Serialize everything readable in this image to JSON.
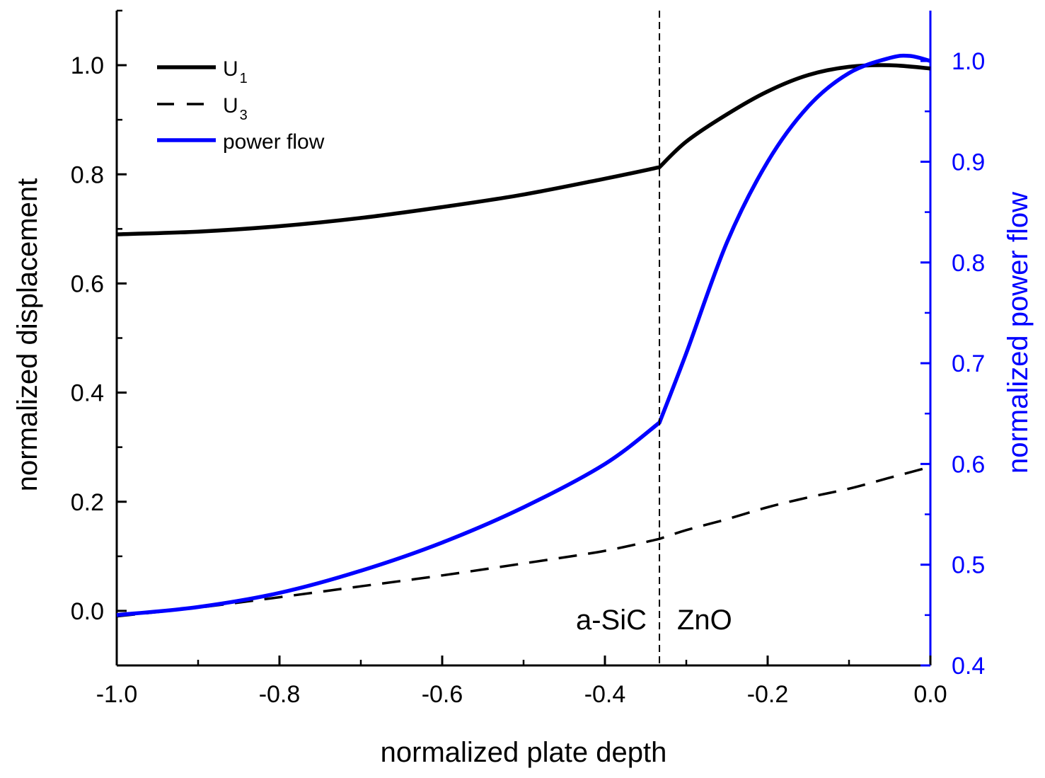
{
  "chart_data": {
    "type": "line",
    "xlabel": "normalized plate depth",
    "ylabel": "normalized displacement",
    "y2label": "normalized power flow",
    "xlim": [
      -1.0,
      0.0
    ],
    "ylim": [
      -0.1,
      1.1
    ],
    "y2lim": [
      0.4,
      1.05
    ],
    "xticks": [
      "-1.0",
      "-0.8",
      "-0.6",
      "-0.4",
      "-0.2",
      "0.0"
    ],
    "yticks": [
      "0.0",
      "0.2",
      "0.4",
      "0.6",
      "0.8",
      "1.0"
    ],
    "y2ticks": [
      "0.4",
      "0.5",
      "0.6",
      "0.7",
      "0.8",
      "0.9",
      "1.0"
    ],
    "grid": false,
    "legend_position": "top-left",
    "colors": {
      "axis_left": "#000000",
      "axis_right": "#0000ff",
      "u1": "#000000",
      "u3": "#000000",
      "power": "#0000ff"
    },
    "interface_x": -0.333,
    "region_labels": {
      "left": "a-SiC",
      "right": "ZnO"
    },
    "series": [
      {
        "name": "U1",
        "legend_main": "U",
        "legend_sub": "1",
        "axis": "left",
        "style": "solid",
        "x": [
          -1.0,
          -0.9,
          -0.8,
          -0.7,
          -0.6,
          -0.5,
          -0.4,
          -0.333,
          -0.3,
          -0.25,
          -0.2,
          -0.15,
          -0.1,
          -0.05,
          0.0
        ],
        "y": [
          0.69,
          0.695,
          0.705,
          0.72,
          0.74,
          0.763,
          0.792,
          0.813,
          0.86,
          0.91,
          0.952,
          0.982,
          0.997,
          1.0,
          0.994
        ]
      },
      {
        "name": "U3",
        "legend_main": "U",
        "legend_sub": "3",
        "axis": "left",
        "style": "dashed",
        "x": [
          -1.0,
          -0.9,
          -0.8,
          -0.7,
          -0.6,
          -0.5,
          -0.4,
          -0.333,
          -0.3,
          -0.25,
          -0.2,
          -0.15,
          -0.1,
          -0.05,
          0.0
        ],
        "y": [
          -0.01,
          0.006,
          0.025,
          0.045,
          0.065,
          0.087,
          0.11,
          0.132,
          0.148,
          0.168,
          0.19,
          0.208,
          0.224,
          0.244,
          0.264
        ]
      },
      {
        "name": "power flow",
        "legend_main": "power flow",
        "legend_sub": "",
        "axis": "right",
        "style": "solid",
        "x": [
          -1.0,
          -0.9,
          -0.8,
          -0.7,
          -0.6,
          -0.5,
          -0.4,
          -0.333,
          -0.3,
          -0.25,
          -0.2,
          -0.15,
          -0.1,
          -0.05,
          -0.025,
          0.0
        ],
        "y": [
          0.45,
          0.458,
          0.472,
          0.494,
          0.522,
          0.557,
          0.6,
          0.641,
          0.71,
          0.82,
          0.9,
          0.955,
          0.988,
          1.003,
          1.005,
          1.0
        ]
      }
    ]
  }
}
